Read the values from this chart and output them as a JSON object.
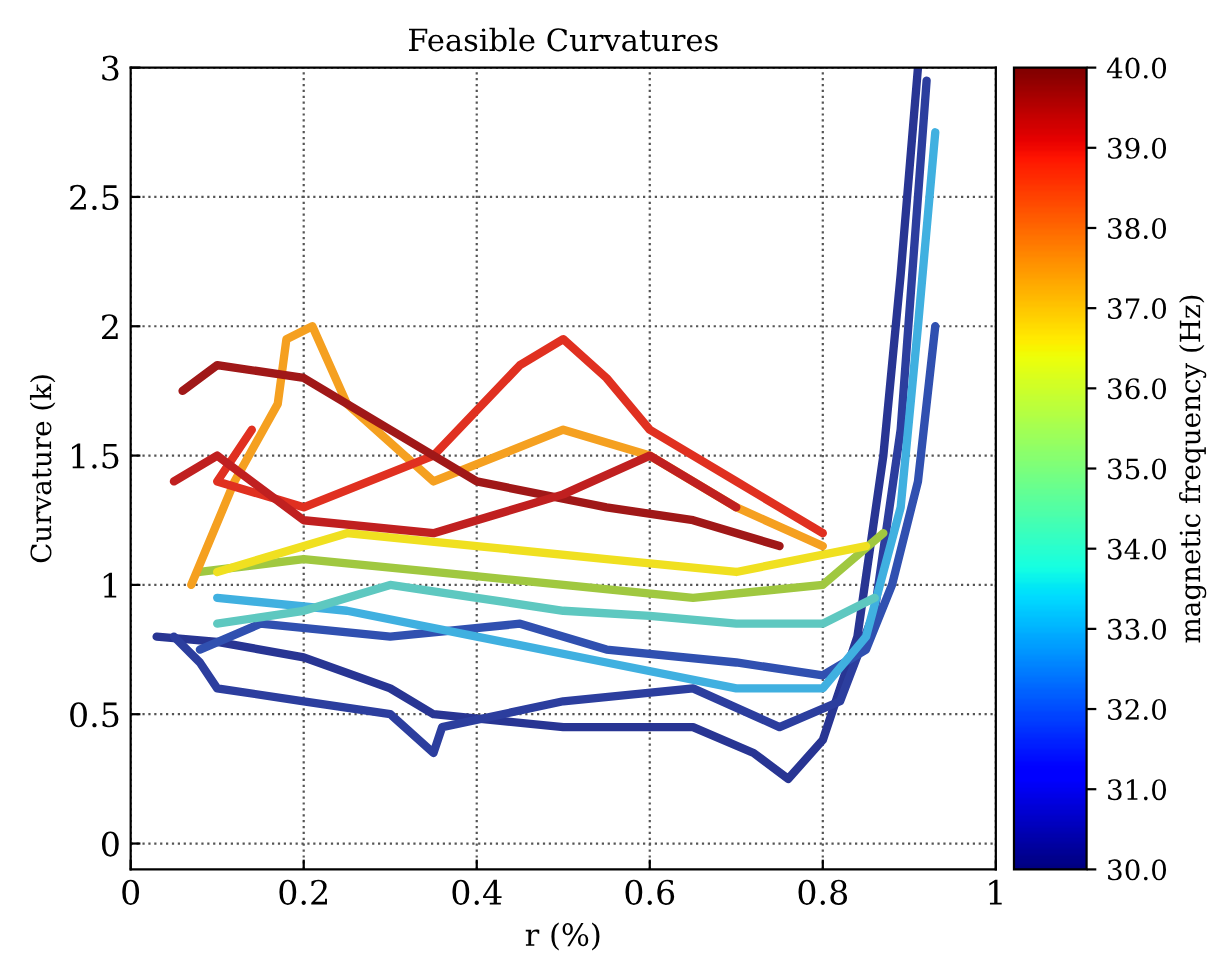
{
  "chart_data": {
    "type": "line",
    "title": "Feasible Curvatures",
    "xlabel": "r (%)",
    "ylabel": "Curvature (k)",
    "clabel": "magnetic frequency (Hz)",
    "xlim": [
      0,
      1
    ],
    "xticks": [
      0,
      0.2,
      0.4,
      0.6,
      0.8,
      1
    ],
    "ylim": [
      -0.1,
      3
    ],
    "yticks": [
      0,
      0.5,
      1,
      1.5,
      2,
      2.5,
      3
    ],
    "clim": [
      30,
      40
    ],
    "cticks": [
      {
        "value": 30,
        "label": "30.0"
      },
      {
        "value": 31,
        "label": "31.0"
      },
      {
        "value": 32,
        "label": "32.0"
      },
      {
        "value": 33,
        "label": "33.0"
      },
      {
        "value": 34,
        "label": "34.0"
      },
      {
        "value": 35,
        "label": "35.0"
      },
      {
        "value": 36,
        "label": "36.0"
      },
      {
        "value": 37,
        "label": "37.0"
      },
      {
        "value": 38,
        "label": "38.0"
      },
      {
        "value": 39,
        "label": "39.0"
      },
      {
        "value": 40,
        "label": "40.0"
      }
    ],
    "grid": true,
    "legend": false,
    "line_style": "solid",
    "marker": "none",
    "series": [
      {
        "color": "#283593",
        "x": [
          0.03,
          0.1,
          0.2,
          0.3,
          0.35,
          0.5,
          0.65,
          0.72,
          0.76,
          0.8,
          0.84,
          0.87,
          0.89,
          0.91
        ],
        "values": [
          0.8,
          0.78,
          0.72,
          0.6,
          0.5,
          0.45,
          0.45,
          0.35,
          0.25,
          0.4,
          0.8,
          1.5,
          2.2,
          3.0
        ]
      },
      {
        "color": "#2c3e9e",
        "x": [
          0.05,
          0.08,
          0.1,
          0.2,
          0.3,
          0.35,
          0.36,
          0.5,
          0.65,
          0.75,
          0.82,
          0.86,
          0.89,
          0.92
        ],
        "values": [
          0.8,
          0.7,
          0.6,
          0.55,
          0.5,
          0.35,
          0.45,
          0.55,
          0.6,
          0.45,
          0.55,
          0.9,
          1.6,
          2.95
        ]
      },
      {
        "color": "#3050b0",
        "x": [
          0.08,
          0.15,
          0.3,
          0.45,
          0.55,
          0.7,
          0.8,
          0.85,
          0.88,
          0.91,
          0.93
        ],
        "values": [
          0.75,
          0.85,
          0.8,
          0.85,
          0.75,
          0.7,
          0.65,
          0.75,
          1.0,
          1.4,
          2.0
        ]
      },
      {
        "color": "#40b0e0",
        "x": [
          0.1,
          0.25,
          0.4,
          0.55,
          0.7,
          0.8,
          0.85,
          0.89,
          0.91,
          0.93
        ],
        "values": [
          0.95,
          0.9,
          0.8,
          0.7,
          0.6,
          0.6,
          0.8,
          1.3,
          2.0,
          2.75
        ]
      },
      {
        "color": "#5ec8c0",
        "x": [
          0.1,
          0.2,
          0.3,
          0.4,
          0.5,
          0.6,
          0.7,
          0.8,
          0.86
        ],
        "values": [
          0.85,
          0.9,
          1.0,
          0.95,
          0.9,
          0.88,
          0.85,
          0.85,
          0.95
        ]
      },
      {
        "color": "#a0c840",
        "x": [
          0.08,
          0.2,
          0.35,
          0.5,
          0.65,
          0.8,
          0.87
        ],
        "values": [
          1.05,
          1.1,
          1.05,
          1.0,
          0.95,
          1.0,
          1.2
        ]
      },
      {
        "color": "#f0e020",
        "x": [
          0.1,
          0.25,
          0.4,
          0.55,
          0.7,
          0.85
        ],
        "values": [
          1.05,
          1.2,
          1.15,
          1.1,
          1.05,
          1.15
        ]
      },
      {
        "color": "#f5a020",
        "x": [
          0.07,
          0.12,
          0.17,
          0.18,
          0.21,
          0.25,
          0.35,
          0.5,
          0.6,
          0.7,
          0.8
        ],
        "values": [
          1.0,
          1.4,
          1.7,
          1.95,
          2.0,
          1.7,
          1.4,
          1.6,
          1.5,
          1.3,
          1.15
        ]
      },
      {
        "color": "#e03020",
        "x": [
          0.14,
          0.1,
          0.2,
          0.35,
          0.45,
          0.5,
          0.55,
          0.6,
          0.7,
          0.8
        ],
        "values": [
          1.6,
          1.4,
          1.3,
          1.5,
          1.85,
          1.95,
          1.8,
          1.6,
          1.4,
          1.2
        ]
      },
      {
        "color": "#a01818",
        "x": [
          0.06,
          0.1,
          0.2,
          0.3,
          0.4,
          0.55,
          0.65,
          0.75
        ],
        "values": [
          1.75,
          1.85,
          1.8,
          1.6,
          1.4,
          1.3,
          1.25,
          1.15
        ]
      },
      {
        "color": "#c02020",
        "x": [
          0.05,
          0.1,
          0.2,
          0.35,
          0.5,
          0.6,
          0.7
        ],
        "values": [
          1.4,
          1.5,
          1.25,
          1.2,
          1.35,
          1.5,
          1.3
        ]
      }
    ]
  }
}
